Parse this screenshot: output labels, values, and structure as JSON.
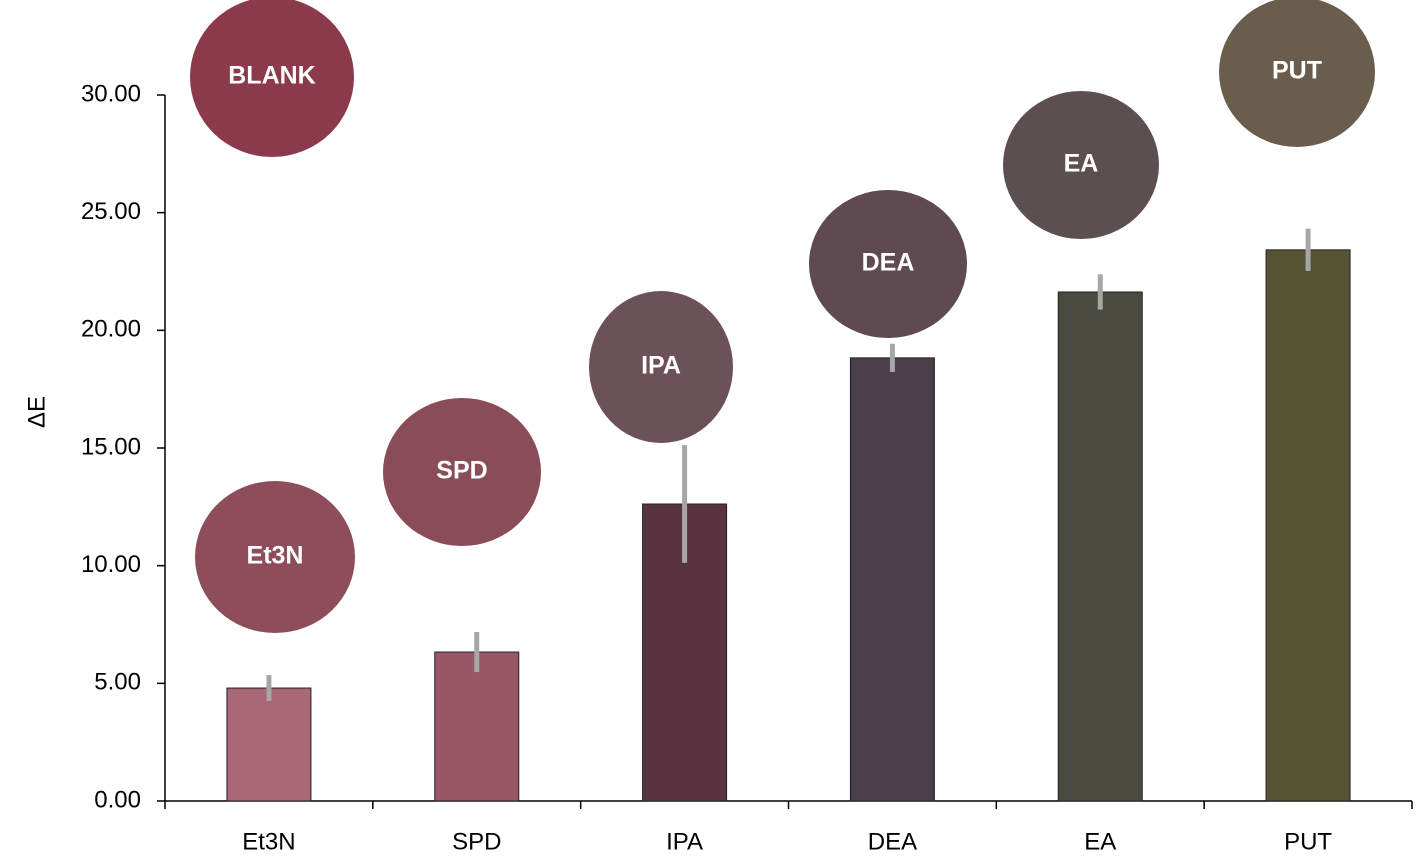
{
  "chart_data": {
    "type": "bar",
    "y_label": "ΔE",
    "categories": [
      "Et3N",
      "SPD",
      "IPA",
      "DEA",
      "EA",
      "PUT"
    ],
    "values": [
      4.8,
      6.33,
      12.62,
      18.83,
      21.63,
      23.42
    ],
    "errors": [
      0.55,
      0.85,
      2.5,
      0.6,
      0.75,
      0.9
    ],
    "colors": [
      "#a86878",
      "#975766",
      "#5a3340",
      "#4a3e4a",
      "#4a4a3f",
      "#565335"
    ],
    "error_color": "#a6a6a6",
    "annotations": [
      "BLANK",
      "Et3N",
      "SPD",
      "IPA",
      "DEA",
      "EA",
      "PUT"
    ],
    "ylim": [
      0,
      30
    ],
    "yticks": [
      {
        "value": 0,
        "label": "0.00"
      },
      {
        "value": 5,
        "label": "5.00"
      },
      {
        "value": 10,
        "label": "10.00"
      },
      {
        "value": 15,
        "label": "15.00"
      },
      {
        "value": 20,
        "label": "20.00"
      },
      {
        "value": 25,
        "label": "25.00"
      },
      {
        "value": 30,
        "label": "30.00"
      }
    ],
    "grid": false
  }
}
